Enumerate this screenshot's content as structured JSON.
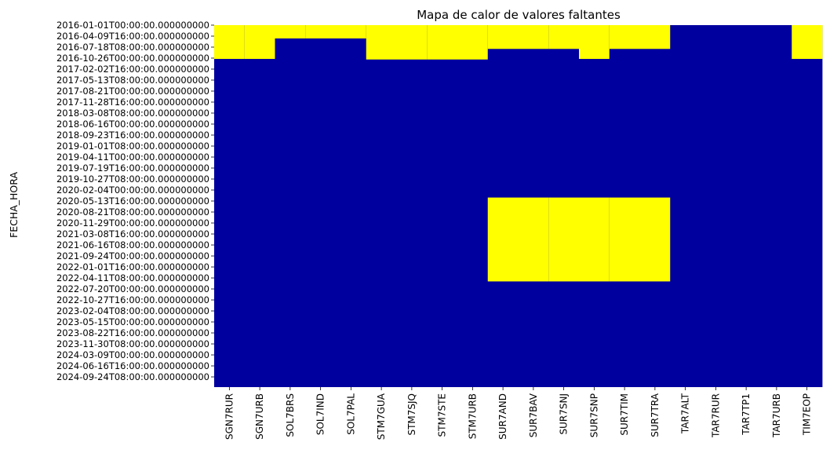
{
  "chart_data": {
    "type": "heatmap",
    "title": "Mapa de calor de valores faltantes",
    "ylabel": "FECHA_HORA",
    "xlabel": "",
    "columns": [
      "SGN7RUR",
      "SGN7URB",
      "SOL7BRS",
      "SOL7IND",
      "SOL7PAL",
      "STM7GUA",
      "STM7SJQ",
      "STM7STE",
      "STM7URB",
      "SUR7AND",
      "SUR7BAV",
      "SUR7SNJ",
      "SUR7SNP",
      "SUR7TIM",
      "SUR7TRA",
      "TAR7ALT",
      "TAR7RUR",
      "TAR7TP1",
      "TAR7URB",
      "TIM7EOP"
    ],
    "row_tick_labels": [
      "2016-01-01T00:00:00.000000000",
      "2016-04-09T16:00:00.000000000",
      "2016-07-18T08:00:00.000000000",
      "2016-10-26T00:00:00.000000000",
      "2017-02-02T16:00:00.000000000",
      "2017-05-13T08:00:00.000000000",
      "2017-08-21T00:00:00.000000000",
      "2017-11-28T16:00:00.000000000",
      "2018-03-08T08:00:00.000000000",
      "2018-06-16T00:00:00.000000000",
      "2018-09-23T16:00:00.000000000",
      "2019-01-01T08:00:00.000000000",
      "2019-04-11T00:00:00.000000000",
      "2019-07-19T16:00:00.000000000",
      "2019-10-27T08:00:00.000000000",
      "2020-02-04T00:00:00.000000000",
      "2020-05-13T16:00:00.000000000",
      "2020-08-21T08:00:00.000000000",
      "2020-11-29T00:00:00.000000000",
      "2021-03-08T16:00:00.000000000",
      "2021-06-16T08:00:00.000000000",
      "2021-09-24T00:00:00.000000000",
      "2022-01-01T16:00:00.000000000",
      "2022-04-11T08:00:00.000000000",
      "2022-07-20T00:00:00.000000000",
      "2022-10-27T16:00:00.000000000",
      "2023-02-04T08:00:00.000000000",
      "2023-05-15T00:00:00.000000000",
      "2023-08-22T16:00:00.000000000",
      "2023-11-30T08:00:00.000000000",
      "2024-03-09T00:00:00.000000000",
      "2024-06-16T16:00:00.000000000",
      "2024-09-24T08:00:00.000000000"
    ],
    "row_span": [
      "2016-01-01T00:00:00",
      "2024-12-31T23:00:00"
    ],
    "missing_ranges": {
      "SGN7RUR": [
        [
          "2016-01-01T00:00:00",
          "2016-11-03T00:00:00"
        ]
      ],
      "SGN7URB": [
        [
          "2016-01-01T00:00:00",
          "2016-11-03T00:00:00"
        ]
      ],
      "SOL7BRS": [
        [
          "2016-01-01T00:00:00",
          "2016-05-01T00:00:00"
        ]
      ],
      "SOL7IND": [
        [
          "2016-01-01T00:00:00",
          "2016-05-01T00:00:00"
        ]
      ],
      "SOL7PAL": [
        [
          "2016-01-01T00:00:00",
          "2016-05-01T00:00:00"
        ]
      ],
      "STM7GUA": [
        [
          "2016-01-01T00:00:00",
          "2016-11-08T00:00:00"
        ]
      ],
      "STM7SJQ": [
        [
          "2016-01-01T00:00:00",
          "2016-11-08T00:00:00"
        ]
      ],
      "STM7STE": [
        [
          "2016-01-01T00:00:00",
          "2016-11-08T00:00:00"
        ]
      ],
      "STM7URB": [
        [
          "2016-01-01T00:00:00",
          "2016-11-08T00:00:00"
        ]
      ],
      "SUR7AND": [
        [
          "2016-01-01T00:00:00",
          "2016-08-04T00:00:00"
        ],
        [
          "2020-04-15T00:00:00",
          "2022-05-17T00:00:00"
        ]
      ],
      "SUR7BAV": [
        [
          "2016-01-01T00:00:00",
          "2016-08-04T00:00:00"
        ],
        [
          "2020-04-15T00:00:00",
          "2022-05-17T00:00:00"
        ]
      ],
      "SUR7SNJ": [
        [
          "2016-01-01T00:00:00",
          "2016-08-04T00:00:00"
        ],
        [
          "2020-04-15T00:00:00",
          "2022-05-17T00:00:00"
        ]
      ],
      "SUR7SNP": [
        [
          "2016-01-01T00:00:00",
          "2016-11-03T00:00:00"
        ],
        [
          "2020-04-15T00:00:00",
          "2022-05-17T00:00:00"
        ]
      ],
      "SUR7TIM": [
        [
          "2016-01-01T00:00:00",
          "2016-08-04T00:00:00"
        ],
        [
          "2020-04-15T00:00:00",
          "2022-05-17T00:00:00"
        ]
      ],
      "SUR7TRA": [
        [
          "2016-01-01T00:00:00",
          "2016-08-04T00:00:00"
        ],
        [
          "2020-04-15T00:00:00",
          "2022-05-17T00:00:00"
        ]
      ],
      "TAR7ALT": [],
      "TAR7RUR": [],
      "TAR7TP1": [],
      "TAR7URB": [],
      "TIM7EOP": [
        [
          "2016-01-01T00:00:00",
          "2016-11-03T00:00:00"
        ]
      ]
    },
    "colors": {
      "missing": "#ffff00",
      "present": "#00009f"
    },
    "legend": "none",
    "grid": false
  }
}
